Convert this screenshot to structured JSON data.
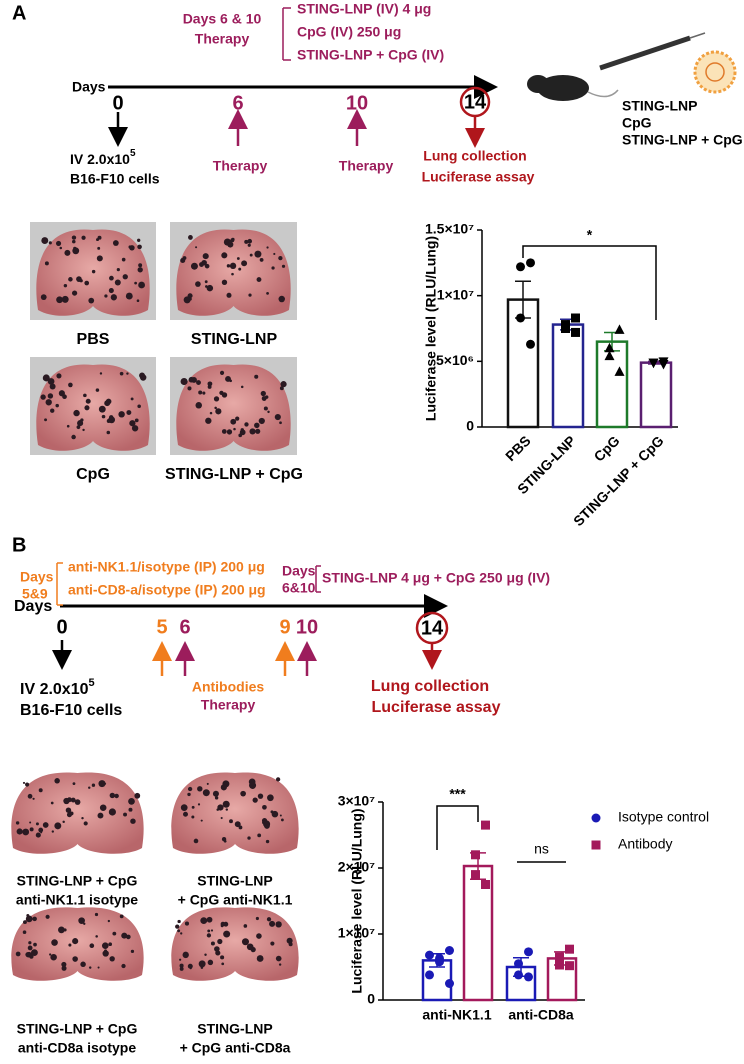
{
  "panel_a": {
    "label": "A",
    "header": [
      "Days 6 & 10",
      "Therapy"
    ],
    "regimens": [
      "STING-LNP (IV) 4 μg",
      "CpG (IV) 250 μg",
      "STING-LNP + CpG (IV)"
    ],
    "axis_label": "Days",
    "days": [
      "0",
      "6",
      "10",
      "14"
    ],
    "inoculation": {
      "text": "IV 2.0x10",
      "exp": "5",
      "cells": "B16-F10 cells"
    },
    "therapy": [
      "Therapy",
      "Therapy"
    ],
    "endpoint": [
      "Lung collection",
      "Luciferase assay"
    ],
    "groups": [
      "STING-LNP",
      "CpG",
      "STING-LNP + CpG"
    ],
    "photo_captions": [
      "PBS",
      "STING-LNP",
      "CpG",
      "STING-LNP + CpG"
    ]
  },
  "panel_b": {
    "label": "B",
    "antibody_days": [
      "Days",
      "5&9"
    ],
    "antibodies": [
      "anti-NK1.1/isotype (IP) 200 μg",
      "anti-CD8-a/isotype (IP) 200 μg"
    ],
    "therapy_days": [
      "Days",
      "6&10"
    ],
    "therapy_regimen": "STING-LNP 4 μg + CpG 250 μg (IV)",
    "axis_label": "Days",
    "days": [
      "0",
      "5",
      "6",
      "9",
      "10",
      "14"
    ],
    "inoculation": {
      "text": "IV 2.0x10",
      "exp": "5",
      "cells": "B16-F10 cells"
    },
    "legend": [
      "Antibodies",
      "Therapy"
    ],
    "endpoint": [
      "Lung collection",
      "Luciferase assay"
    ],
    "photo_captions": [
      [
        "STING-LNP + CpG",
        "anti-NK1.1 isotype"
      ],
      [
        "STING-LNP",
        "+ CpG anti-NK1.1"
      ],
      [
        "STING-LNP + CpG",
        "anti-CD8a isotype"
      ],
      [
        "STING-LNP",
        "+ CpG anti-CD8a"
      ]
    ]
  },
  "chart_data": [
    {
      "type": "bar",
      "ylabel": "Luciferase level (RLU/Lung)",
      "categories": [
        "PBS",
        "STING-LNP",
        "CpG",
        "STING-LNP + CpG"
      ],
      "values": [
        9700000,
        7800000,
        6500000,
        4900000
      ],
      "errors": [
        1400000,
        400000,
        700000,
        100000
      ],
      "points": [
        [
          12500000,
          12200000,
          8300000,
          6300000
        ],
        [
          8300000,
          7800000,
          7500000,
          7200000
        ],
        [
          7400000,
          6000000,
          5400000,
          4200000
        ],
        [
          5000000,
          4900000,
          4900000,
          4800000
        ]
      ],
      "colors": [
        "#111111",
        "#24248f",
        "#1e7a2a",
        "#5a1f70"
      ],
      "markers": [
        "circle",
        "square",
        "triangle",
        "triangle-down"
      ],
      "ylim": [
        0,
        15000000
      ],
      "yticks": [
        0,
        {
          "value": 5000000,
          "label": "5×10⁶"
        },
        {
          "value": 10000000,
          "label": "1×10⁷"
        },
        {
          "value": 15000000,
          "label": "1.5×10⁷"
        }
      ],
      "annotations": [
        "*"
      ]
    },
    {
      "type": "grouped_bar",
      "ylabel": "Luciferase level (RLU/Lung)",
      "categories": [
        "anti-NK1.1",
        "anti-CD8a"
      ],
      "series": [
        {
          "name": "Isotype control",
          "color": "#1a1ab5",
          "marker": "circle",
          "values": [
            6000000,
            5000000
          ],
          "errors": [
            1000000,
            1400000
          ],
          "points": [
            [
              7500000,
              6800000,
              6300000,
              5800000,
              3800000,
              2500000
            ],
            [
              7300000,
              5500000,
              3800000,
              3500000
            ]
          ]
        },
        {
          "name": "Antibody",
          "color": "#a3195b",
          "marker": "square",
          "values": [
            20300000,
            6300000
          ],
          "errors": [
            2000000,
            1000000
          ],
          "points": [
            [
              26500000,
              22000000,
              19000000,
              17500000
            ],
            [
              7700000,
              6500000,
              5300000,
              5200000
            ]
          ]
        }
      ],
      "ylim": [
        0,
        30000000
      ],
      "yticks": [
        0,
        {
          "value": 10000000,
          "label": "1×10⁷"
        },
        {
          "value": 20000000,
          "label": "2×10⁷"
        },
        {
          "value": 30000000,
          "label": "3×10⁷"
        }
      ],
      "annotations": [
        "***",
        "ns"
      ]
    }
  ]
}
